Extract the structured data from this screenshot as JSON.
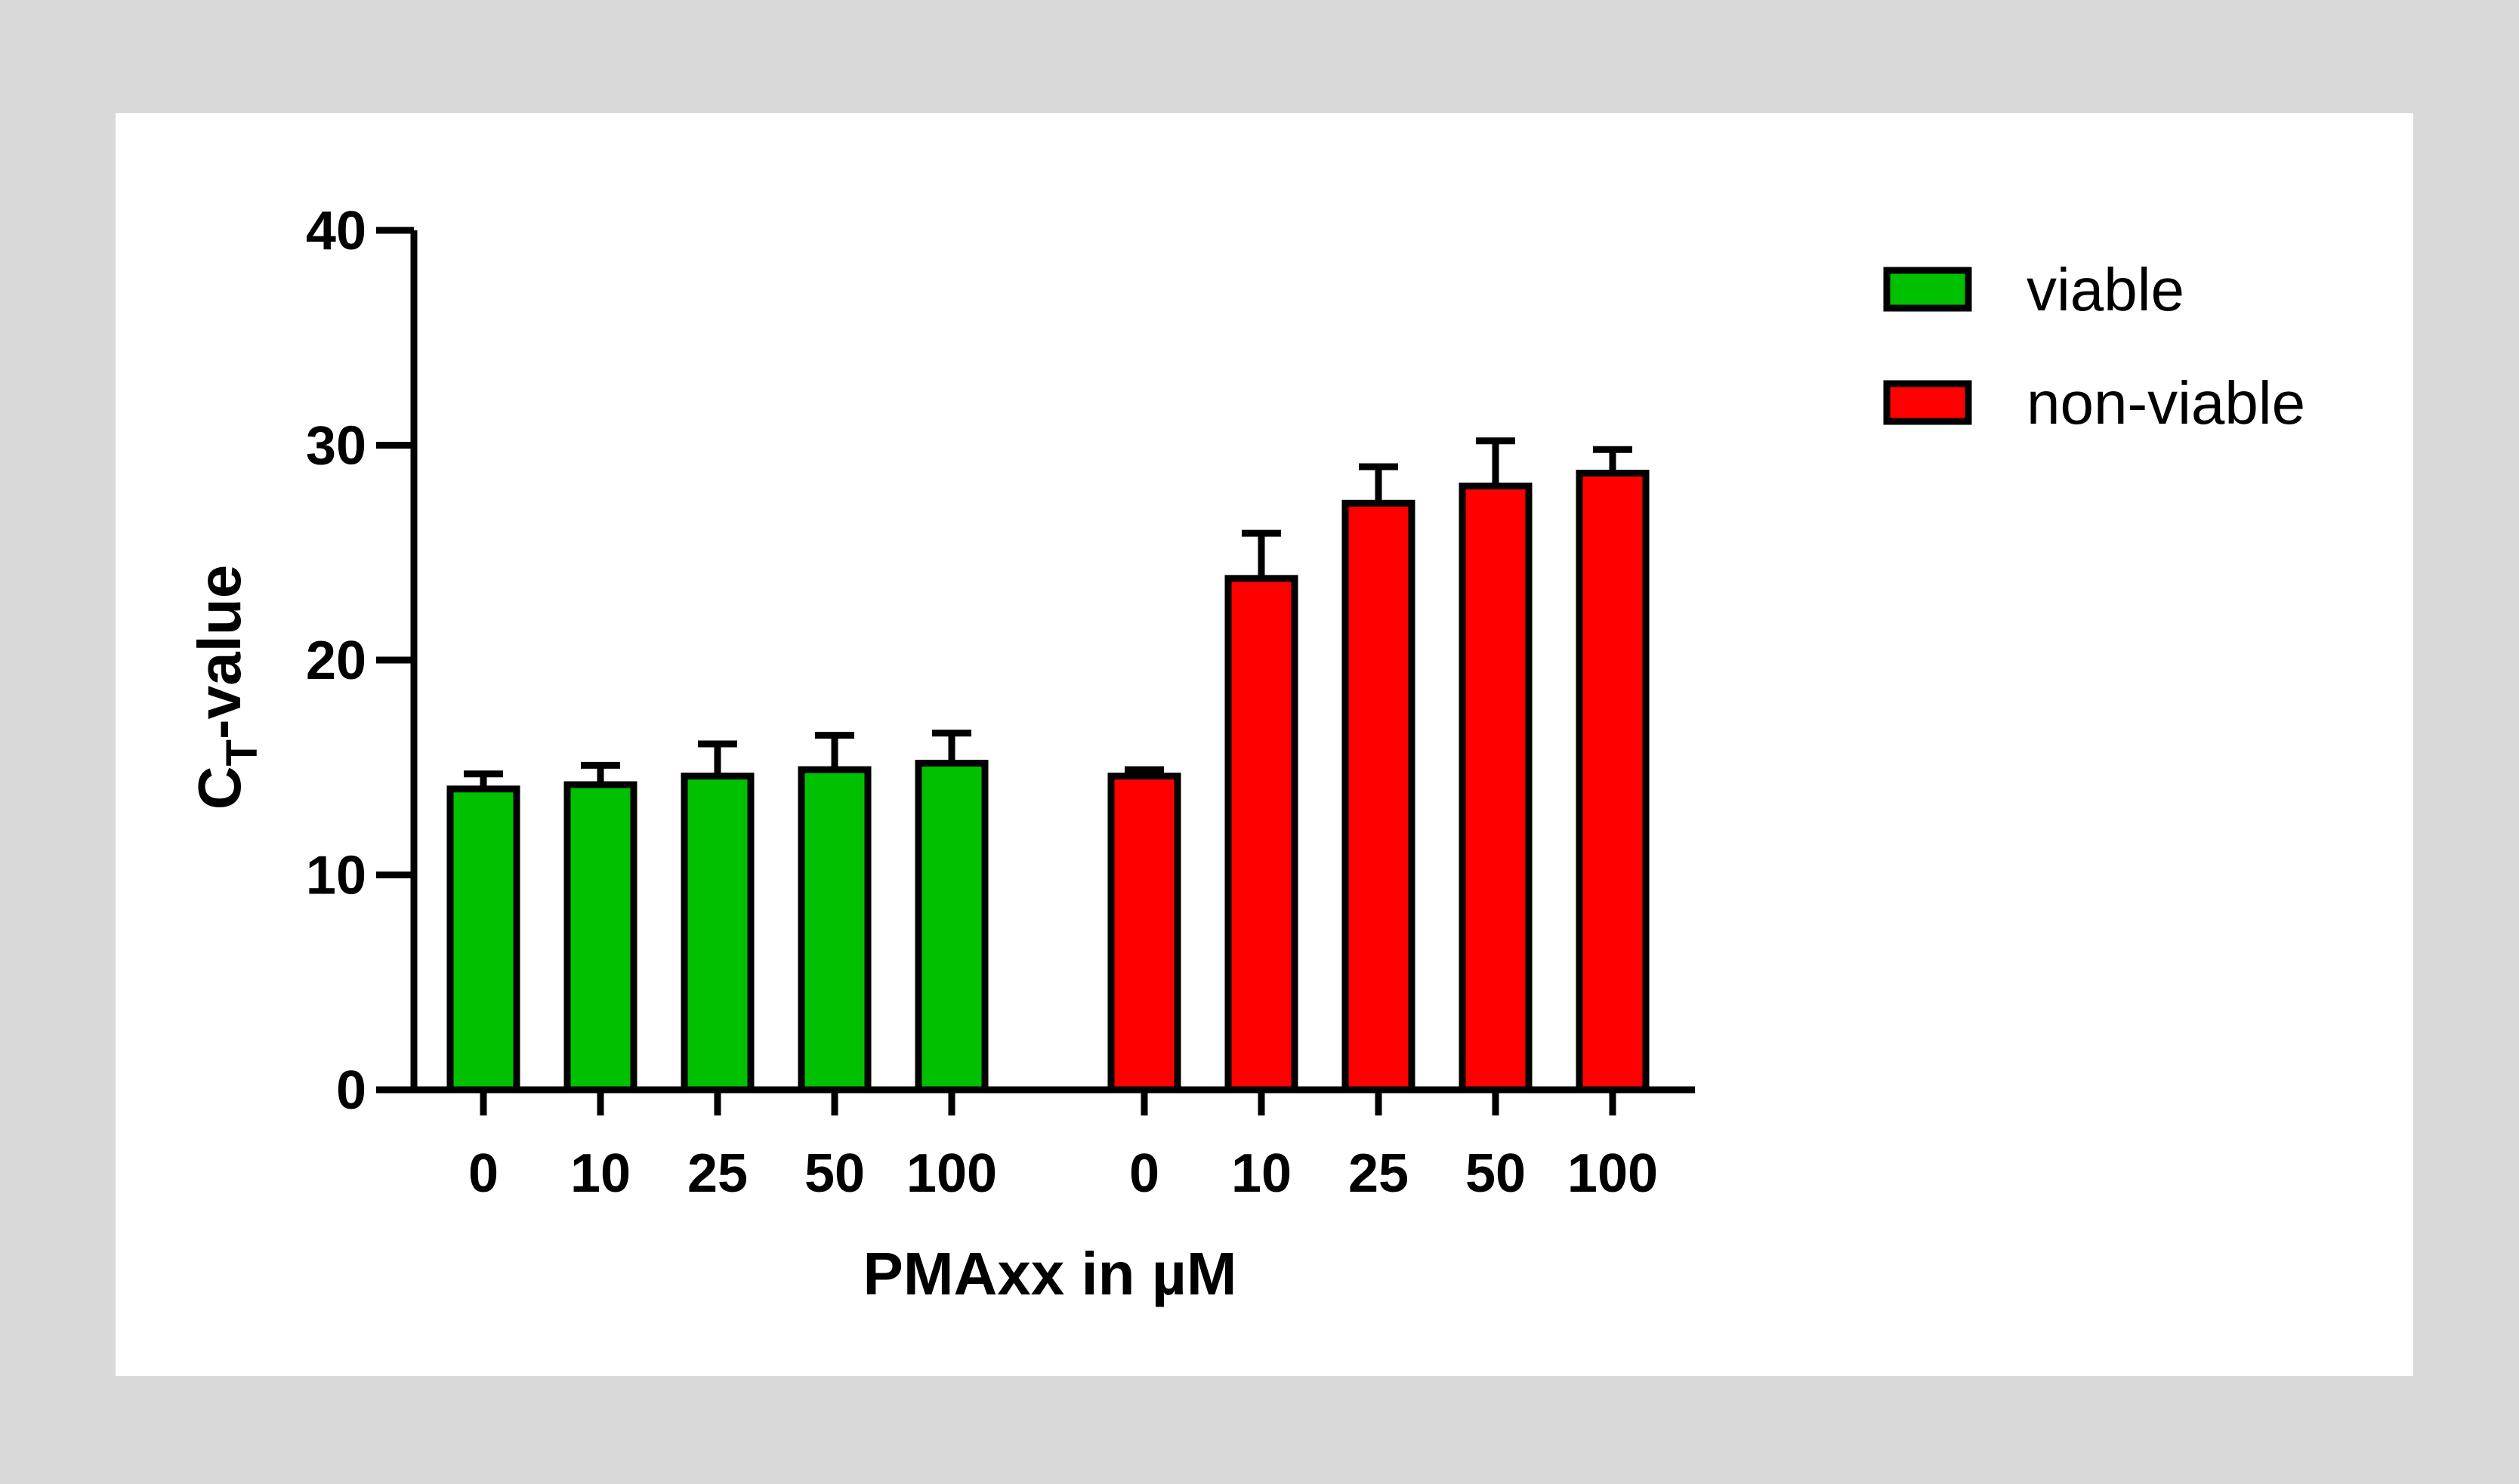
{
  "chart_data": {
    "type": "bar",
    "title": "",
    "xlabel": "PMAxx in µM",
    "ylabel": {
      "main": "C",
      "sub": "T",
      "suffix": "-value"
    },
    "ylim": [
      0,
      40
    ],
    "yticks": [
      0,
      10,
      20,
      30,
      40
    ],
    "groups": [
      {
        "name": "viable",
        "color": "#00c000",
        "categories": [
          "0",
          "10",
          "25",
          "50",
          "100"
        ],
        "values": [
          14.0,
          14.2,
          14.6,
          14.9,
          15.2
        ],
        "errors": [
          0.7,
          0.9,
          1.5,
          1.6,
          1.4
        ]
      },
      {
        "name": "non-viable",
        "color": "#ff0000",
        "categories": [
          "0",
          "10",
          "25",
          "50",
          "100"
        ],
        "values": [
          14.6,
          23.8,
          27.3,
          28.1,
          28.7
        ],
        "errors": [
          0.3,
          2.1,
          1.7,
          2.1,
          1.1
        ]
      }
    ],
    "legend": {
      "position": "top-right",
      "entries": [
        "viable",
        "non-viable"
      ]
    },
    "grid": false
  }
}
